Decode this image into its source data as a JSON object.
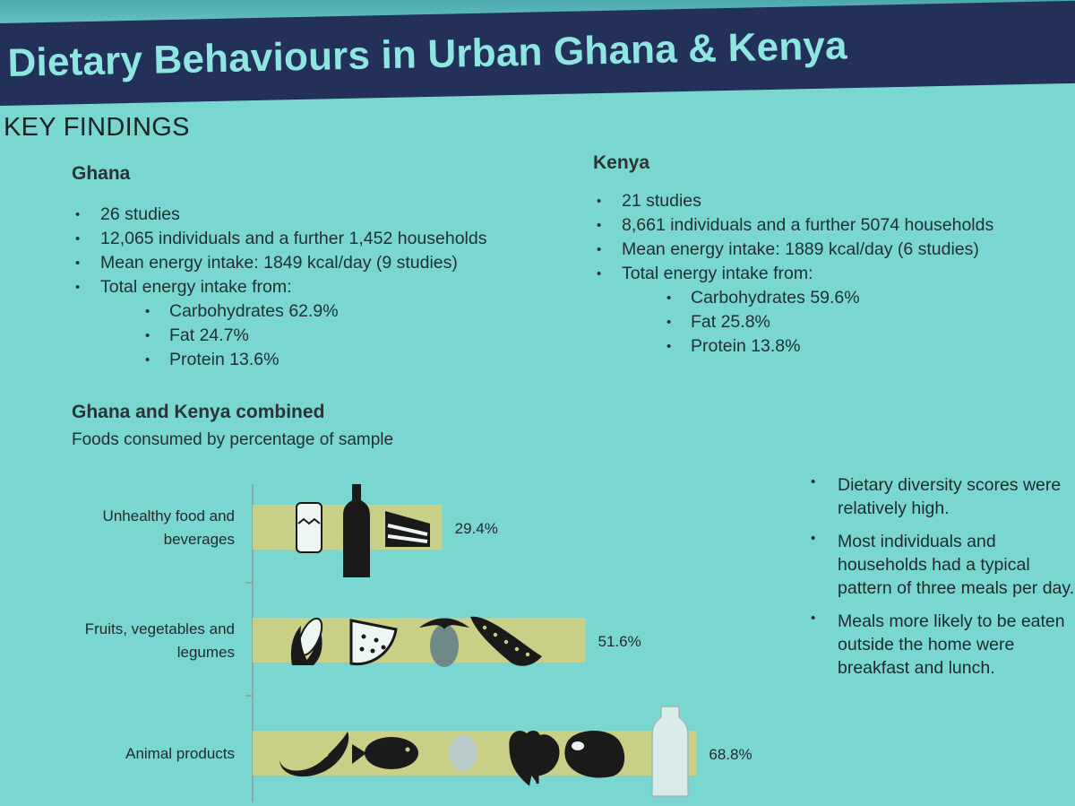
{
  "title": "Dietary Behaviours in Urban Ghana & Kenya",
  "section_title": "KEY FINDINGS",
  "ghana": {
    "heading": "Ghana",
    "bullets": [
      "26 studies",
      "12,065 individuals and a further 1,452 households",
      "Mean energy intake: 1849 kcal/day (9 studies)",
      "Total energy intake from:"
    ],
    "sub_bullets": [
      "Carbohydrates 62.9%",
      "Fat 24.7%",
      "Protein 13.6%"
    ]
  },
  "kenya": {
    "heading": "Kenya",
    "bullets": [
      "21 studies",
      "8,661 individuals and a further 5074 households",
      "Mean energy intake: 1889 kcal/day (6 studies)",
      "Total energy intake from:"
    ],
    "sub_bullets": [
      "Carbohydrates 59.6%",
      "Fat 25.8%",
      "Protein 13.8%"
    ]
  },
  "combined": {
    "heading": "Ghana and Kenya combined",
    "subheading": "Foods consumed by percentage of sample"
  },
  "chart_data": {
    "type": "bar",
    "orientation": "horizontal",
    "title": "Foods consumed by percentage of sample",
    "categories": [
      [
        "Unhealthy food and",
        "beverages"
      ],
      [
        "Fruits, vegetables and",
        "legumes"
      ],
      [
        "Animal products"
      ]
    ],
    "values": [
      29.4,
      51.6,
      68.8
    ],
    "value_labels": [
      "29.4%",
      "51.6%",
      "68.8%"
    ],
    "xlim": [
      0,
      100
    ],
    "icons": [
      [
        "soda-can-icon",
        "bottle-icon",
        "cake-slice-icon"
      ],
      [
        "corn-icon",
        "watermelon-slice-icon",
        "eggplant-icon",
        "pea-pod-icon"
      ],
      [
        "sausage-icon",
        "fish-icon",
        "egg-icon",
        "chicken-icon",
        "steak-icon",
        "milk-bottle-icon"
      ]
    ],
    "colors": {
      "bar": "#c9cf86",
      "axis": "#8aa8a4",
      "icon": "#1a1a1a"
    },
    "grid": false
  },
  "side_bullets": [
    "Dietary diversity scores were relatively high.",
    "Most individuals and households had a typical pattern of three meals per day.",
    "Meals more likely to be eaten outside the home were breakfast and lunch."
  ]
}
